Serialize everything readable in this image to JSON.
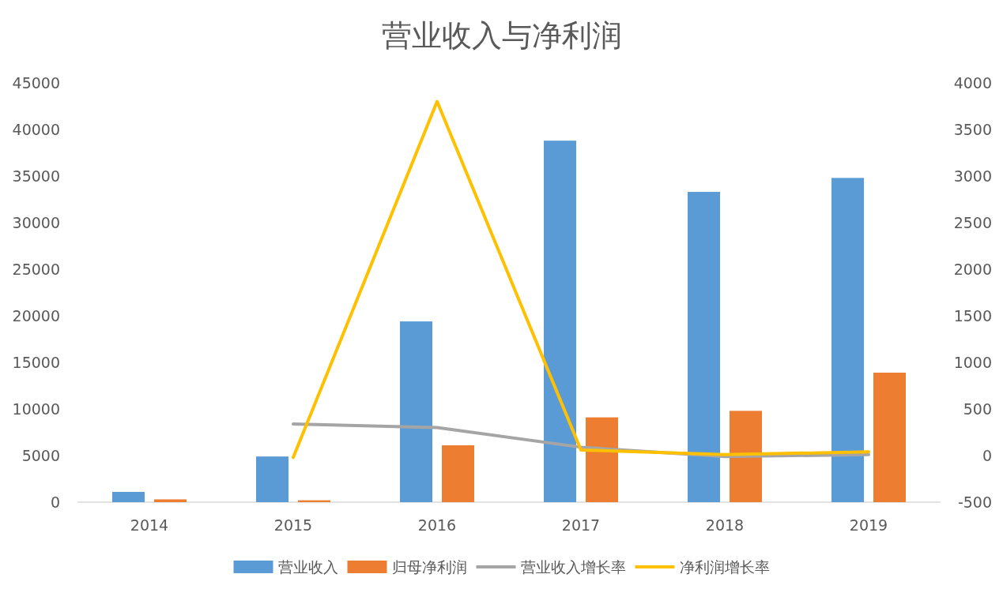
{
  "chart_data": {
    "type": "bar",
    "title": "营业收入与净利润",
    "categories": [
      "2014",
      "2015",
      "2016",
      "2017",
      "2018",
      "2019"
    ],
    "series": [
      {
        "name": "营业收入",
        "color": "#5b9bd5",
        "values": [
          1100,
          4900,
          19400,
          38800,
          33300,
          34800
        ]
      },
      {
        "name": "归母净利润",
        "color": "#ed7d31",
        "values": [
          300,
          200,
          6100,
          9100,
          9800,
          13900
        ]
      },
      {
        "name": "营业收入增长率",
        "type": "line",
        "axis": "y2",
        "color": "#a5a5a5",
        "values": [
          null,
          340,
          300,
          90,
          -10,
          10
        ]
      },
      {
        "name": "净利润增长率",
        "type": "line",
        "axis": "y2",
        "color": "#ffc000",
        "values": [
          null,
          -20,
          3800,
          60,
          10,
          40
        ]
      }
    ],
    "ylim": [
      0,
      45000
    ],
    "yticks": [
      0,
      5000,
      10000,
      15000,
      20000,
      25000,
      30000,
      35000,
      40000,
      45000
    ],
    "y2lim": [
      -500,
      4000
    ],
    "y2ticks": [
      -500,
      0,
      500,
      1000,
      1500,
      2000,
      2500,
      3000,
      3500,
      4000
    ],
    "legend": "bottom",
    "marker": "none"
  }
}
